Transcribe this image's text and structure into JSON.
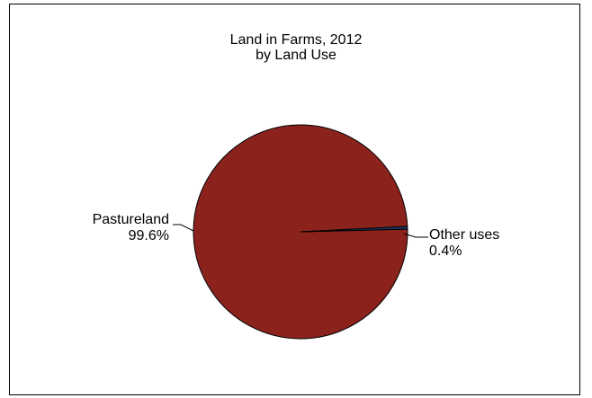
{
  "chart_data": {
    "type": "pie",
    "title_lines": [
      "Land in Farms, 2012",
      "by Land Use"
    ],
    "slices": [
      {
        "label": "Pastureland",
        "value": 99.6,
        "value_label": "99.6%",
        "color": "#8B231C"
      },
      {
        "label": "Other uses",
        "value": 0.4,
        "value_label": "0.4%",
        "color": "#1F3A6B"
      }
    ],
    "legend": "none",
    "labels_outside": true,
    "leader_lines": true
  }
}
